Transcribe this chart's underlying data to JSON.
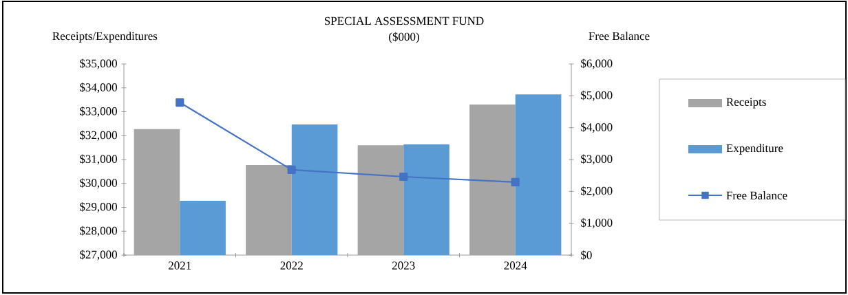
{
  "chart_data": {
    "type": "bar",
    "title": "SPECIAL ASSESSMENT FUND",
    "subtitle": "($000)",
    "ylabel": "Receipts/Expenditures",
    "y2label": "Free Balance",
    "categories": [
      "2021",
      "2022",
      "2023",
      "2024"
    ],
    "series": [
      {
        "name": "Receipts",
        "color": "#a5a5a5",
        "values": [
          32270,
          30770,
          31600,
          33300
        ]
      },
      {
        "name": "Expenditure",
        "color": "#5b9bd5",
        "values": [
          29270,
          32470,
          31630,
          33730
        ]
      },
      {
        "name": "Free Balance",
        "type": "line",
        "axis": "y2",
        "color": "#4472c4",
        "marker": "square",
        "values": [
          4790,
          2680,
          2460,
          2290
        ]
      }
    ],
    "ylim": [
      27000,
      35000
    ],
    "yticks": [
      {
        "value": 27000,
        "label": "$27,000"
      },
      {
        "value": 28000,
        "label": "$28,000"
      },
      {
        "value": 29000,
        "label": "$29,000"
      },
      {
        "value": 30000,
        "label": "$30,000"
      },
      {
        "value": 31000,
        "label": "$31,000"
      },
      {
        "value": 32000,
        "label": "$32,000"
      },
      {
        "value": 33000,
        "label": "$33,000"
      },
      {
        "value": 34000,
        "label": "$34,000"
      },
      {
        "value": 35000,
        "label": "$35,000"
      }
    ],
    "y2lim": [
      0,
      6000
    ],
    "y2ticks": [
      {
        "value": 0,
        "label": "$0"
      },
      {
        "value": 1000,
        "label": "$1,000"
      },
      {
        "value": 2000,
        "label": "$2,000"
      },
      {
        "value": 3000,
        "label": "$3,000"
      },
      {
        "value": 4000,
        "label": "$4,000"
      },
      {
        "value": 5000,
        "label": "$5,000"
      },
      {
        "value": 6000,
        "label": "$6,000"
      }
    ],
    "legend": "right"
  }
}
